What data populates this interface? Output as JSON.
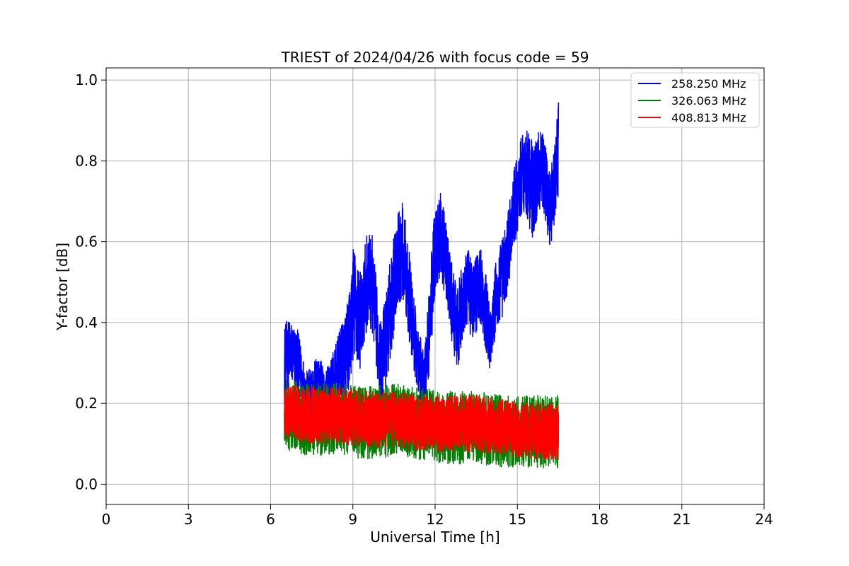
{
  "chart_data": {
    "type": "line",
    "title": "TRIEST of 2024/04/26 with focus code = 59",
    "xlabel": "Universal Time [h]",
    "ylabel": "Y-factor [dB]",
    "xlim": [
      0,
      24
    ],
    "ylim": [
      -0.05,
      1.03
    ],
    "xticks": [
      0,
      3,
      6,
      9,
      12,
      15,
      18,
      21,
      24
    ],
    "yticks": [
      0.0,
      0.2,
      0.4,
      0.6,
      0.8,
      1.0
    ],
    "ytick_labels": [
      "0.0",
      "0.2",
      "0.4",
      "0.6",
      "0.8",
      "1.0"
    ],
    "grid": true,
    "legend_position": "top-right",
    "series": [
      {
        "name": "258.250 MHz",
        "color": "#0000ff",
        "x": [
          6.5,
          6.7,
          7.0,
          7.3,
          7.5,
          7.7,
          8.0,
          8.3,
          8.6,
          8.9,
          9.0,
          9.3,
          9.5,
          9.7,
          10.0,
          10.2,
          10.4,
          10.6,
          10.8,
          11.0,
          11.2,
          11.4,
          11.6,
          11.8,
          12.0,
          12.2,
          12.4,
          12.6,
          12.8,
          13.0,
          13.2,
          13.4,
          13.6,
          13.8,
          14.0,
          14.2,
          14.4,
          14.6,
          14.8,
          15.0,
          15.2,
          15.4,
          15.6,
          15.8,
          16.0,
          16.2,
          16.4,
          16.5
        ],
        "y": [
          0.3,
          0.33,
          0.3,
          0.22,
          0.22,
          0.25,
          0.22,
          0.25,
          0.3,
          0.36,
          0.45,
          0.4,
          0.5,
          0.5,
          0.3,
          0.35,
          0.45,
          0.55,
          0.58,
          0.5,
          0.38,
          0.3,
          0.25,
          0.4,
          0.58,
          0.62,
          0.55,
          0.45,
          0.38,
          0.45,
          0.48,
          0.45,
          0.5,
          0.45,
          0.36,
          0.45,
          0.5,
          0.55,
          0.65,
          0.72,
          0.78,
          0.76,
          0.72,
          0.78,
          0.76,
          0.68,
          0.76,
          0.84
        ],
        "amplitude": [
          0.1,
          0.08,
          0.08,
          0.06,
          0.07,
          0.08,
          0.06,
          0.08,
          0.1,
          0.12,
          0.15,
          0.12,
          0.12,
          0.12,
          0.1,
          0.12,
          0.13,
          0.12,
          0.12,
          0.12,
          0.1,
          0.08,
          0.08,
          0.12,
          0.12,
          0.1,
          0.1,
          0.1,
          0.1,
          0.1,
          0.1,
          0.1,
          0.1,
          0.1,
          0.08,
          0.1,
          0.1,
          0.1,
          0.1,
          0.1,
          0.1,
          0.12,
          0.12,
          0.1,
          0.1,
          0.1,
          0.1,
          0.12
        ]
      },
      {
        "name": "326.063 MHz",
        "color": "#008000",
        "x": [
          6.5,
          7.5,
          8.5,
          9.5,
          10.5,
          11.5,
          12.5,
          13.5,
          14.5,
          15.5,
          16.5
        ],
        "y": [
          0.17,
          0.16,
          0.16,
          0.15,
          0.16,
          0.15,
          0.14,
          0.14,
          0.13,
          0.13,
          0.13
        ],
        "amplitude": [
          0.09,
          0.09,
          0.09,
          0.09,
          0.09,
          0.09,
          0.09,
          0.09,
          0.09,
          0.09,
          0.09
        ]
      },
      {
        "name": "408.813 MHz",
        "color": "#ff0000",
        "x": [
          6.5,
          7.5,
          8.5,
          9.5,
          10.5,
          11.5,
          12.5,
          13.5,
          14.5,
          15.5,
          16.5
        ],
        "y": [
          0.18,
          0.17,
          0.17,
          0.16,
          0.16,
          0.15,
          0.15,
          0.15,
          0.14,
          0.13,
          0.13
        ],
        "amplitude": [
          0.07,
          0.07,
          0.07,
          0.07,
          0.07,
          0.07,
          0.07,
          0.07,
          0.07,
          0.07,
          0.07
        ]
      }
    ]
  }
}
